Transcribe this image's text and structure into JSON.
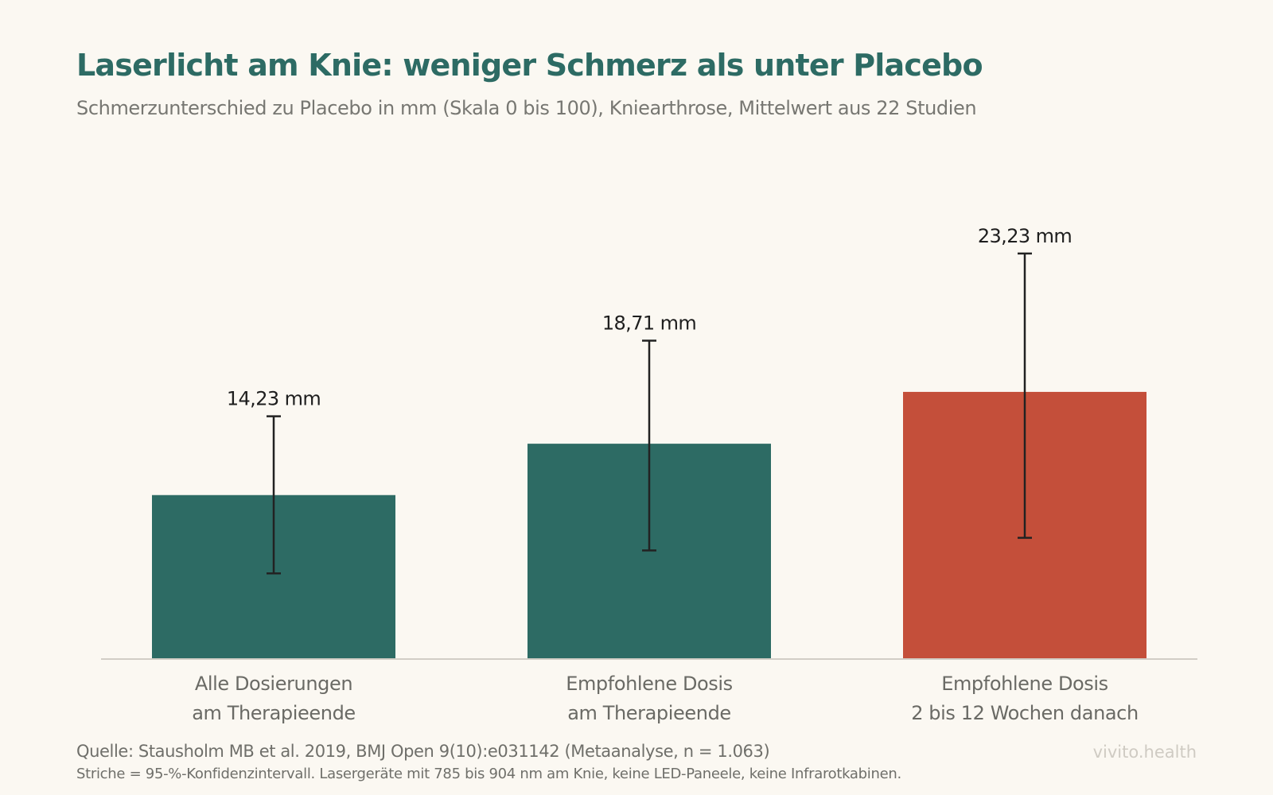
{
  "chart_data": {
    "type": "bar",
    "title": "Laserlicht am Knie: weniger Schmerz als unter Placebo",
    "subtitle": "Schmerzunterschied zu Placebo in mm (Skala 0 bis 100), Kniearthrose, Mittelwert aus 22 Studien",
    "categories": [
      [
        "Alle Dosierungen",
        "am Therapieende"
      ],
      [
        "Empfohlene Dosis",
        "am Therapieende"
      ],
      [
        "Empfohlene Dosis",
        "2 bis 12 Wochen danach"
      ]
    ],
    "values": [
      14.23,
      18.71,
      23.23
    ],
    "ci_low": [
      7.4,
      9.4,
      10.5
    ],
    "ci_high": [
      21.1,
      27.7,
      35.3
    ],
    "value_labels": [
      "14,23 mm",
      "18,71 mm",
      "23,23 mm"
    ],
    "bar_colors": [
      "#2D6B64",
      "#2D6B64",
      "#C44F3A"
    ],
    "ylim": [
      0,
      37.3
    ],
    "grid": false,
    "xlabel": "",
    "ylabel": ""
  },
  "footer": {
    "source": "Quelle: Stausholm MB et al. 2019, BMJ Open 9(10):e031142 (Metaanalyse, n = 1.063)",
    "note": "Striche = 95-%-Konfidenzintervall. Lasergeräte mit 785 bis 904 nm am Knie, keine LED-Paneele, keine Infrarotkabinen.",
    "brand": "vivito.health"
  }
}
